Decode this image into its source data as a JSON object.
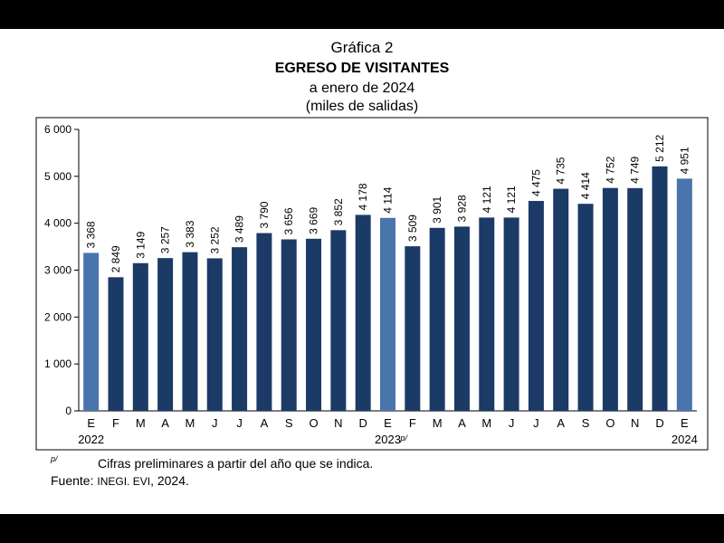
{
  "chart_data": {
    "type": "bar",
    "title_line1": "Gráfica 2",
    "title_line2": "EGRESO DE VISITANTES",
    "title_line3": "a enero de 2024",
    "subtitle": "(miles de salidas)",
    "ylim": [
      0,
      6000
    ],
    "yticks": [
      0,
      1000,
      2000,
      3000,
      4000,
      5000,
      6000
    ],
    "ytick_labels": [
      "0",
      "1 000",
      "2 000",
      "3 000",
      "4 000",
      "5 000",
      "6 000"
    ],
    "categories": [
      "E",
      "F",
      "M",
      "A",
      "M",
      "J",
      "J",
      "A",
      "S",
      "O",
      "N",
      "D",
      "E",
      "F",
      "M",
      "A",
      "M",
      "J",
      "J",
      "A",
      "S",
      "O",
      "N",
      "D",
      "E"
    ],
    "values": [
      3368,
      2849,
      3149,
      3257,
      3383,
      3252,
      3489,
      3790,
      3656,
      3669,
      3852,
      4178,
      4114,
      3509,
      3901,
      3928,
      4121,
      4121,
      4475,
      4735,
      4414,
      4752,
      4749,
      5212,
      4951
    ],
    "value_labels": [
      "3 368",
      "2 849",
      "3 149",
      "3 257",
      "3 383",
      "3 252",
      "3 489",
      "3 790",
      "3 656",
      "3 669",
      "3 852",
      "4 178",
      "4 114",
      "3 509",
      "3 901",
      "3 928",
      "4 121",
      "4 121",
      "4 475",
      "4 735",
      "4 414",
      "4 752",
      "4 749",
      "5 212",
      "4 951"
    ],
    "highlight_indices": [
      0,
      12,
      24
    ],
    "year_labels": [
      {
        "index": 0,
        "label": "2022"
      },
      {
        "index": 12,
        "label": "2023"
      },
      {
        "index": 24,
        "label": "2024"
      }
    ],
    "preliminary_mark": "p/",
    "colors": {
      "dark": "#1c3a66",
      "light": "#4a74ac"
    }
  },
  "footnote": {
    "mark": "p/",
    "text": "Cifras preliminares a partir del año que se indica."
  },
  "source": {
    "label": "Fuente:",
    "org": "INEGI. EVI",
    "year": ", 2024."
  }
}
